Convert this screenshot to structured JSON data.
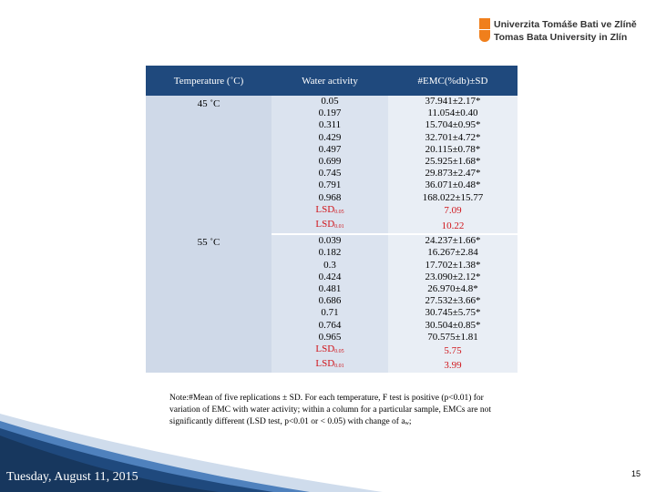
{
  "logo": {
    "line1": "Univerzita Tomáše Bati ve Zlíně",
    "line2": "Tomas Bata University in Zlín"
  },
  "table": {
    "headers": [
      "Temperature (˚C)",
      "Water activity",
      "#EMC(%db)±SD"
    ],
    "groups": [
      {
        "temperature": "45 ˚C",
        "rows": [
          {
            "aw": "0.05",
            "emc": "37.941±2.17*"
          },
          {
            "aw": "0.197",
            "emc": "11.054±0.40"
          },
          {
            "aw": "0.311",
            "emc": "15.704±0.95*"
          },
          {
            "aw": "0.429",
            "emc": "32.701±4.72*"
          },
          {
            "aw": "0.497",
            "emc": "20.115±0.78*"
          },
          {
            "aw": "0.699",
            "emc": "25.925±1.68*"
          },
          {
            "aw": "0.745",
            "emc": "29.873±2.47*"
          },
          {
            "aw": "0.791",
            "emc": "36.071±0.48*"
          },
          {
            "aw": "0.968",
            "emc": "168.022±15.77"
          }
        ],
        "lsd": [
          {
            "label": "LSD",
            "sub": "0.05",
            "value": "7.09"
          },
          {
            "label": "LSD",
            "sub": "0.01",
            "value": "10.22"
          }
        ]
      },
      {
        "temperature": "55 ˚C",
        "rows": [
          {
            "aw": "0.039",
            "emc": "24.237±1.66*"
          },
          {
            "aw": "0.182",
            "emc": "16.267±2.84"
          },
          {
            "aw": "0.3",
            "emc": "17.702±1.38*"
          },
          {
            "aw": "0.424",
            "emc": "23.090±2.12*"
          },
          {
            "aw": "0.481",
            "emc": "26.970±4.8*"
          },
          {
            "aw": "0.686",
            "emc": "27.532±3.66*"
          },
          {
            "aw": "0.71",
            "emc": "30.745±5.75*"
          },
          {
            "aw": "0.764",
            "emc": "30.504±0.85*"
          },
          {
            "aw": "0.965",
            "emc": "70.575±1.81"
          }
        ],
        "lsd": [
          {
            "label": "LSD",
            "sub": "0.05",
            "value": "5.75"
          },
          {
            "label": "LSD",
            "sub": "0.01",
            "value": "3.99"
          }
        ]
      }
    ]
  },
  "note": {
    "text": "Note:#Mean of five replications ± SD. For each temperature, F test is positive (p<0.01) for variation of EMC with water activity; within a column for a particular sample, EMCs are not significantly different (LSD test, p<0.01 or < 0.05) with change of a",
    "sub": "w",
    "end": ";"
  },
  "footer": {
    "date": "Tuesday, August 11, 2015",
    "page": "15"
  },
  "colors": {
    "header": "#1f497d",
    "red": "#d0151b",
    "logo": "#f07f1c"
  }
}
